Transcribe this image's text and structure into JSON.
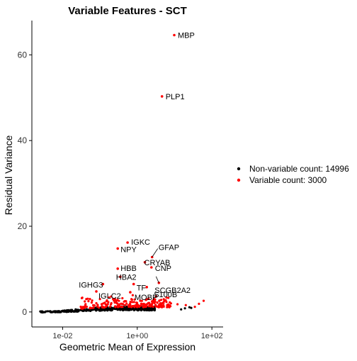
{
  "chart_data": {
    "type": "scatter",
    "title": "Variable Features - SCT",
    "xlabel": "Geometric Mean of Expression",
    "ylabel": "Residual Variance",
    "xscale": "log10",
    "xlim": [
      0.0015,
      200
    ],
    "ylim": [
      -3.5,
      68
    ],
    "x_ticks": [
      0.01,
      1,
      100
    ],
    "x_tick_labels": [
      "1e-02",
      "1e+00",
      "1e+02"
    ],
    "y_ticks": [
      0,
      20,
      40,
      60
    ],
    "y_tick_labels": [
      "0",
      "20",
      "40",
      "60"
    ],
    "grid": false,
    "legend_position": "right",
    "series": [
      {
        "name": "Non-variable count: 14996",
        "color": "#000000"
      },
      {
        "name": "Variable count: 3000",
        "color": "#ff0000"
      }
    ],
    "nonvariable_curve": [
      [
        0.0025,
        0.02
      ],
      [
        0.005,
        0.05
      ],
      [
        0.01,
        0.15
      ],
      [
        0.02,
        0.3
      ],
      [
        0.05,
        0.55
      ],
      [
        0.1,
        0.7
      ],
      [
        0.2,
        0.8
      ],
      [
        0.5,
        0.85
      ],
      [
        1,
        0.85
      ],
      [
        3,
        0.8
      ]
    ],
    "nonvariable_outliers": [
      [
        15,
        0.6
      ],
      [
        19,
        0.85
      ],
      [
        25,
        1.1
      ],
      [
        28,
        0.95
      ]
    ],
    "labeled_points": [
      {
        "label": "MBP",
        "x": 9.8,
        "y": 64.6
      },
      {
        "label": "PLP1",
        "x": 4.6,
        "y": 50.3
      },
      {
        "label": "IGKC",
        "x": 0.55,
        "y": 16.2
      },
      {
        "label": "NPY",
        "x": 0.3,
        "y": 14.8
      },
      {
        "label": "GFAP",
        "x": 2.5,
        "y": 12.8
      },
      {
        "label": "CRYAB",
        "x": 1.6,
        "y": 11.6
      },
      {
        "label": "HBB",
        "x": 0.3,
        "y": 10.1
      },
      {
        "label": "CNP",
        "x": 2.4,
        "y": 10.4
      },
      {
        "label": "HBA2",
        "x": 0.35,
        "y": 8.2
      },
      {
        "label": "IGHG3",
        "x": 0.12,
        "y": 6.5
      },
      {
        "label": "TF",
        "x": 0.8,
        "y": 6.5
      },
      {
        "label": "SCGB2A2",
        "x": 3.8,
        "y": 6.8
      },
      {
        "label": "S100B",
        "x": 1.8,
        "y": 5.8
      },
      {
        "label": "IGLC2",
        "x": 0.08,
        "y": 4.8
      },
      {
        "label": "MOBP",
        "x": 0.65,
        "y": 4.6
      }
    ],
    "variable_extra_points": [
      [
        0.06,
        2.2
      ],
      [
        0.1,
        3.0
      ],
      [
        0.15,
        2.5
      ],
      [
        0.2,
        3.6
      ],
      [
        0.25,
        2.8
      ],
      [
        0.4,
        3.2
      ],
      [
        0.5,
        2.5
      ],
      [
        0.7,
        3.0
      ],
      [
        1.2,
        2.6
      ],
      [
        2.0,
        3.1
      ],
      [
        3.0,
        2.4
      ],
      [
        5.0,
        2.2
      ],
      [
        8.0,
        2.0
      ],
      [
        12,
        1.8
      ],
      [
        20,
        1.6
      ],
      [
        45,
        1.9
      ],
      [
        60,
        2.6
      ],
      [
        35,
        1.2
      ]
    ]
  }
}
